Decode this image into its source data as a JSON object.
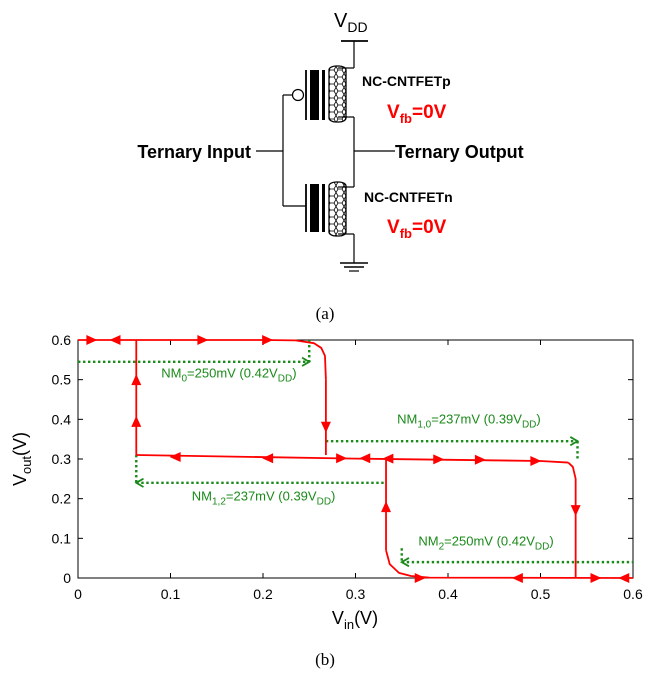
{
  "circuit": {
    "vdd_main": "V",
    "vdd_sub": "DD",
    "ptype_label": "NC-CNTFETp",
    "ntype_label": "NC-CNTFETn",
    "vfb_p": {
      "main": "V",
      "sub": "fb",
      "value": "=0V"
    },
    "vfb_n": {
      "main": "V",
      "sub": "fb",
      "value": "=0V"
    },
    "input_label": "Ternary Input",
    "output_label": "Ternary Output",
    "caption": "(a)",
    "vfb_color": "#ff0000"
  },
  "plot_caption": "(b)",
  "chart_data": {
    "type": "line",
    "xlabel": {
      "main": "V",
      "sub": "in",
      "unit": "(V)"
    },
    "ylabel": {
      "main": "V",
      "sub": "out",
      "unit": "(V)"
    },
    "xlim": [
      0,
      0.6
    ],
    "ylim": [
      0,
      0.6
    ],
    "xticks": [
      "0",
      "0.1",
      "0.2",
      "0.3",
      "0.4",
      "0.5",
      "0.6"
    ],
    "yticks": [
      "0",
      "0.1",
      "0.2",
      "0.3",
      "0.4",
      "0.5",
      "0.6"
    ],
    "grid": false,
    "curve_color": "#ff0000",
    "nm_color": "#1a8a1a",
    "series": [
      {
        "x": [
          0,
          0.2,
          0.235,
          0.255,
          0.263,
          0.267,
          0.268
        ],
        "y": [
          0.6,
          0.6,
          0.599,
          0.592,
          0.58,
          0.56,
          0.5
        ]
      },
      {
        "x": [
          0.268,
          0.268
        ],
        "y": [
          0.5,
          0.31
        ]
      },
      {
        "x": [
          0.063,
          0.063
        ],
        "y": [
          0.6,
          0.31
        ]
      },
      {
        "x": [
          0.063,
          0.3,
          0.5,
          0.53
        ],
        "y": [
          0.31,
          0.301,
          0.295,
          0.291
        ]
      },
      {
        "x": [
          0.53,
          0.535,
          0.538,
          0.538
        ],
        "y": [
          0.291,
          0.28,
          0.25,
          0
        ]
      },
      {
        "x": [
          0.333,
          0.333
        ],
        "y": [
          0.3,
          0.07
        ]
      },
      {
        "x": [
          0.333,
          0.337,
          0.347,
          0.36,
          0.38,
          0.6
        ],
        "y": [
          0.07,
          0.035,
          0.013,
          0.005,
          0.001,
          0
        ]
      }
    ],
    "arrows": [
      {
        "x": 0.015,
        "y": 0.6,
        "dir": "right"
      },
      {
        "x": 0.04,
        "y": 0.6,
        "dir": "left"
      },
      {
        "x": 0.135,
        "y": 0.6,
        "dir": "right"
      },
      {
        "x": 0.205,
        "y": 0.6,
        "dir": "right"
      },
      {
        "x": 0.268,
        "y": 0.38,
        "dir": "down"
      },
      {
        "x": 0.063,
        "y": 0.5,
        "dir": "up"
      },
      {
        "x": 0.063,
        "y": 0.395,
        "dir": "up"
      },
      {
        "x": 0.105,
        "y": 0.305,
        "dir": "left"
      },
      {
        "x": 0.205,
        "y": 0.302,
        "dir": "left"
      },
      {
        "x": 0.285,
        "y": 0.302,
        "dir": "right"
      },
      {
        "x": 0.31,
        "y": 0.302,
        "dir": "left"
      },
      {
        "x": 0.335,
        "y": 0.301,
        "dir": "left"
      },
      {
        "x": 0.39,
        "y": 0.299,
        "dir": "right"
      },
      {
        "x": 0.435,
        "y": 0.298,
        "dir": "right"
      },
      {
        "x": 0.495,
        "y": 0.295,
        "dir": "right"
      },
      {
        "x": 0.538,
        "y": 0.17,
        "dir": "down"
      },
      {
        "x": 0.333,
        "y": 0.18,
        "dir": "up"
      },
      {
        "x": 0.37,
        "y": 0,
        "dir": "right"
      },
      {
        "x": 0.475,
        "y": 0,
        "dir": "left"
      },
      {
        "x": 0.56,
        "y": 0,
        "dir": "right"
      },
      {
        "x": 0.59,
        "y": 0,
        "dir": "left"
      }
    ],
    "noise_margins": [
      {
        "pre": "NM",
        "sub": "0",
        "mid": "=250mV (0.42V",
        "sub2": "DD",
        "post": ")",
        "h": {
          "x1": 0,
          "x2": 0.25,
          "y": 0.545,
          "head": "end"
        },
        "v": {
          "x": 0.25,
          "y1": 0.6,
          "y2": 0.545
        },
        "label_at": {
          "x": 0.09,
          "y": 0.505
        }
      },
      {
        "pre": "NM",
        "sub": "1,0",
        "mid": "=237mV (0.39V",
        "sub2": "DD",
        "post": ")",
        "h": {
          "x1": 0.268,
          "x2": 0.54,
          "y": 0.345,
          "head": "end"
        },
        "v": {
          "x": 0.54,
          "y1": 0.345,
          "y2": 0.3
        },
        "label_at": {
          "x": 0.345,
          "y": 0.39
        }
      },
      {
        "pre": "NM",
        "sub": "1,2",
        "mid": "=237mV (0.39V",
        "sub2": "DD",
        "post": ")",
        "h": {
          "x1": 0.063,
          "x2": 0.333,
          "y": 0.24,
          "head": "start"
        },
        "v": {
          "x": 0.063,
          "y1": 0.31,
          "y2": 0.24
        },
        "label_at": {
          "x": 0.123,
          "y": 0.195
        }
      },
      {
        "pre": "NM",
        "sub": "2",
        "mid": "=250mV (0.42V",
        "sub2": "DD",
        "post": ")",
        "h": {
          "x1": 0.35,
          "x2": 0.6,
          "y": 0.04,
          "head": "start"
        },
        "v": {
          "x": 0.35,
          "y1": 0.075,
          "y2": 0.04
        },
        "label_at": {
          "x": 0.368,
          "y": 0.082
        }
      }
    ]
  }
}
